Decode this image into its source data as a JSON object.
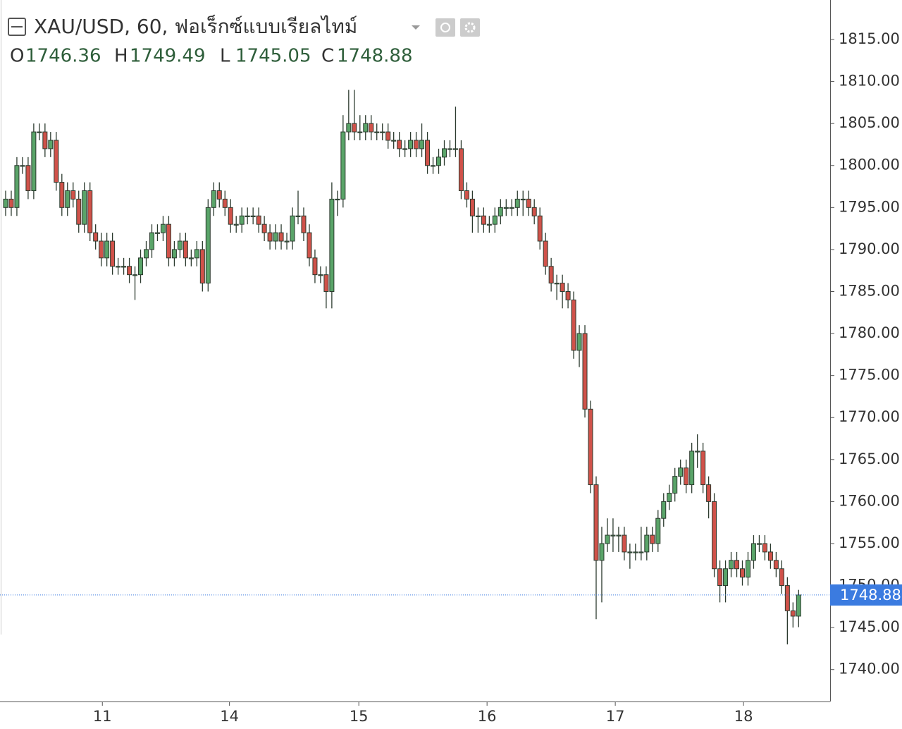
{
  "chart_data": {
    "type": "candlestick",
    "title": "XAU/USD, 60, ฟอเร็กซ์แบบเรียลไทม์",
    "ohlc_labels": [
      "O",
      "H",
      "L",
      "C"
    ],
    "open": [
      1795,
      1796,
      1795,
      1800,
      1800,
      1797,
      1804,
      1804,
      1802,
      1803,
      1798,
      1795,
      1797,
      1796,
      1793,
      1797,
      1792,
      1791,
      1789,
      1791,
      1788,
      1788,
      1788,
      1787,
      1787,
      1789,
      1790,
      1792,
      1792,
      1793,
      1789,
      1790,
      1791,
      1789,
      1789,
      1790,
      1786,
      1795,
      1797,
      1796,
      1795,
      1793,
      1793,
      1794,
      1794,
      1794,
      1793,
      1792,
      1791,
      1792,
      1791,
      1791,
      1794,
      1794,
      1792,
      1789,
      1787,
      1787,
      1785,
      1796,
      1796,
      1804,
      1805,
      1804,
      1804,
      1805,
      1804,
      1804,
      1804,
      1803,
      1803,
      1802,
      1802,
      1803,
      1802,
      1803,
      1800,
      1800,
      1801,
      1802,
      1802,
      1802,
      1797,
      1796,
      1794,
      1794,
      1793,
      1793,
      1794,
      1795,
      1795,
      1795,
      1796,
      1796,
      1795,
      1794,
      1791,
      1788,
      1786,
      1786,
      1785,
      1784,
      1778,
      1780,
      1771,
      1762,
      1753,
      1755,
      1756,
      1756,
      1756,
      1754,
      1754,
      1754,
      1754,
      1756,
      1755,
      1758,
      1760,
      1761,
      1763,
      1764,
      1762,
      1766,
      1766,
      1762,
      1760,
      1752,
      1750,
      1752,
      1753,
      1752,
      1751,
      1753,
      1755,
      1755,
      1754,
      1753,
      1752,
      1750,
      1747,
      1746.36
    ],
    "high": [
      1797,
      1797,
      1801,
      1801,
      1801,
      1805,
      1805,
      1805,
      1804,
      1804,
      1799,
      1798,
      1798,
      1797,
      1798,
      1798,
      1793,
      1792,
      1792,
      1792,
      1789,
      1789,
      1789,
      1788,
      1790,
      1791,
      1793,
      1793,
      1794,
      1794,
      1791,
      1792,
      1792,
      1790,
      1791,
      1791,
      1796,
      1798,
      1798,
      1797,
      1796,
      1794,
      1795,
      1795,
      1795,
      1795,
      1794,
      1793,
      1793,
      1793,
      1792,
      1795,
      1797,
      1795,
      1793,
      1790,
      1788,
      1788,
      1798,
      1797,
      1806,
      1809,
      1809,
      1806,
      1806,
      1806,
      1805,
      1805,
      1805,
      1804,
      1804,
      1803,
      1804,
      1804,
      1805,
      1804,
      1801,
      1802,
      1803,
      1803,
      1807,
      1803,
      1798,
      1797,
      1795,
      1795,
      1794,
      1795,
      1796,
      1796,
      1796,
      1797,
      1797,
      1797,
      1796,
      1795,
      1792,
      1789,
      1787,
      1787,
      1786,
      1785,
      1781,
      1781,
      1772,
      1763,
      1757,
      1758,
      1758,
      1757,
      1757,
      1755,
      1755,
      1757,
      1757,
      1757,
      1759,
      1761,
      1762,
      1764,
      1765,
      1765,
      1767,
      1768,
      1767,
      1763,
      1761,
      1753,
      1753,
      1754,
      1754,
      1753,
      1754,
      1756,
      1756,
      1756,
      1755,
      1754,
      1753,
      1751,
      1748,
      1749.49
    ],
    "low": [
      1794,
      1794,
      1794,
      1799,
      1796,
      1796,
      1803,
      1801,
      1801,
      1797,
      1794,
      1794,
      1795,
      1792,
      1792,
      1791,
      1790,
      1788,
      1788,
      1787,
      1787,
      1787,
      1786,
      1784,
      1786,
      1788,
      1789,
      1791,
      1791,
      1788,
      1788,
      1789,
      1788,
      1788,
      1788,
      1785,
      1785,
      1794,
      1795,
      1794,
      1792,
      1792,
      1792,
      1793,
      1793,
      1792,
      1791,
      1790,
      1790,
      1790,
      1790,
      1790,
      1793,
      1791,
      1788,
      1786,
      1786,
      1783,
      1783,
      1794,
      1795,
      1803,
      1803,
      1803,
      1803,
      1803,
      1803,
      1803,
      1802,
      1802,
      1801,
      1801,
      1801,
      1801,
      1801,
      1799,
      1799,
      1799,
      1800,
      1801,
      1801,
      1796,
      1795,
      1792,
      1792,
      1792,
      1792,
      1792,
      1793,
      1794,
      1794,
      1794,
      1794,
      1794,
      1793,
      1790,
      1787,
      1785,
      1784,
      1783,
      1783,
      1777,
      1776,
      1770,
      1761,
      1746,
      1748,
      1754,
      1754,
      1754,
      1753,
      1752,
      1753,
      1753,
      1753,
      1754,
      1754,
      1757,
      1759,
      1760,
      1762,
      1761,
      1761,
      1764,
      1761,
      1758,
      1751,
      1748,
      1748,
      1751,
      1751,
      1750,
      1750,
      1752,
      1754,
      1753,
      1752,
      1751,
      1749,
      1743,
      1745,
      1745.05
    ],
    "close": [
      1796,
      1795,
      1800,
      1800,
      1797,
      1804,
      1804,
      1802,
      1803,
      1798,
      1795,
      1797,
      1796,
      1793,
      1797,
      1792,
      1791,
      1789,
      1791,
      1788,
      1788,
      1788,
      1787,
      1787,
      1789,
      1790,
      1792,
      1792,
      1793,
      1789,
      1790,
      1791,
      1789,
      1789,
      1790,
      1786,
      1795,
      1797,
      1796,
      1795,
      1793,
      1793,
      1794,
      1794,
      1794,
      1793,
      1792,
      1791,
      1792,
      1791,
      1791,
      1794,
      1794,
      1792,
      1789,
      1787,
      1787,
      1785,
      1796,
      1796,
      1804,
      1805,
      1804,
      1804,
      1805,
      1804,
      1804,
      1804,
      1803,
      1803,
      1802,
      1802,
      1803,
      1802,
      1803,
      1800,
      1800,
      1801,
      1802,
      1802,
      1802,
      1797,
      1796,
      1794,
      1794,
      1793,
      1793,
      1794,
      1795,
      1795,
      1795,
      1796,
      1796,
      1795,
      1794,
      1791,
      1788,
      1786,
      1786,
      1785,
      1784,
      1778,
      1780,
      1771,
      1762,
      1753,
      1755,
      1756,
      1756,
      1756,
      1754,
      1754,
      1754,
      1754,
      1756,
      1755,
      1758,
      1760,
      1761,
      1763,
      1764,
      1762,
      1766,
      1766,
      1762,
      1760,
      1752,
      1750,
      1752,
      1753,
      1752,
      1751,
      1753,
      1755,
      1755,
      1754,
      1753,
      1752,
      1750,
      1747,
      1746.36,
      1748.88
    ],
    "xlim": [
      -1,
      146.6
    ],
    "xticks": [
      {
        "value": 17.2,
        "label": "11"
      },
      {
        "value": 39.8,
        "label": "14"
      },
      {
        "value": 62.8,
        "label": "15"
      },
      {
        "value": 85.6,
        "label": "16"
      },
      {
        "value": 108.4,
        "label": "17"
      },
      {
        "value": 131.2,
        "label": "18"
      }
    ],
    "ylim": [
      1736.2,
      1819.7
    ],
    "yticks": [
      {
        "value": 1740,
        "label": "1740.00"
      },
      {
        "value": 1745,
        "label": "1745.00"
      },
      {
        "value": 1750,
        "label": "1750.00"
      },
      {
        "value": 1755,
        "label": "1755.00"
      },
      {
        "value": 1760,
        "label": "1760.00"
      },
      {
        "value": 1765,
        "label": "1765.00"
      },
      {
        "value": 1770,
        "label": "1770.00"
      },
      {
        "value": 1775,
        "label": "1775.00"
      },
      {
        "value": 1780,
        "label": "1780.00"
      },
      {
        "value": 1785,
        "label": "1785.00"
      },
      {
        "value": 1790,
        "label": "1790.00"
      },
      {
        "value": 1795,
        "label": "1795.00"
      },
      {
        "value": 1800,
        "label": "1800.00"
      },
      {
        "value": 1805,
        "label": "1805.00"
      },
      {
        "value": 1810,
        "label": "1810.00"
      },
      {
        "value": 1815,
        "label": "1815.00"
      }
    ],
    "up_color": "#5aa469",
    "down_color": "#d0524a",
    "wick_color": "#2b3a2e",
    "last_price_color": "#3b7be0"
  }
}
